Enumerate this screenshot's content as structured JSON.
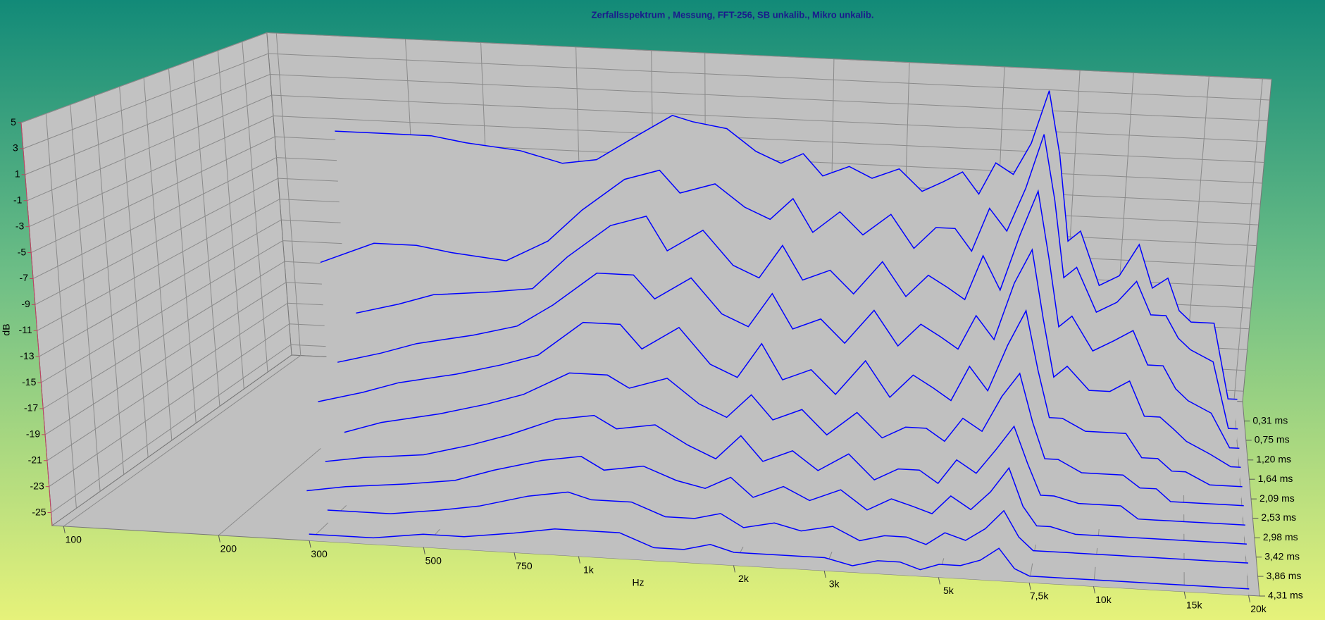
{
  "chart_data": {
    "type": "waterfall",
    "title": "Zerfallsspektrum , Messung, FFT-256, SB unkalib., Mikro unkalib.",
    "xlabel": "Hz",
    "ylabel": "dB",
    "color": "#0000ff",
    "xlog": true,
    "grid": true,
    "xlim": [
      95,
      21000
    ],
    "ylim": [
      -26,
      5
    ],
    "zlim": [
      0.31,
      4.31
    ],
    "xticks": [
      100,
      200,
      300,
      500,
      750,
      {
        "value": 1000,
        "label": "1k"
      },
      {
        "value": 2000,
        "label": "2k"
      },
      {
        "value": 3000,
        "label": "3k"
      },
      {
        "value": 5000,
        "label": "5k"
      },
      {
        "value": 7500,
        "label": "7,5k"
      },
      {
        "value": 10000,
        "label": "10k"
      },
      {
        "value": 15000,
        "label": "15k"
      },
      {
        "value": 20000,
        "label": "20k"
      }
    ],
    "yticks": [
      5,
      3,
      1,
      -1,
      -3,
      -5,
      -7,
      -9,
      -11,
      -13,
      -15,
      -17,
      -19,
      -21,
      -23,
      -25
    ],
    "zticks": [
      {
        "value": 0.31,
        "label": "0,31 ms"
      },
      {
        "value": 0.75,
        "label": "0,75 ms"
      },
      {
        "value": 1.2,
        "label": "1,20 ms"
      },
      {
        "value": 1.64,
        "label": "1,64 ms"
      },
      {
        "value": 2.09,
        "label": "2,09 ms"
      },
      {
        "value": 2.53,
        "label": "2,53 ms"
      },
      {
        "value": 2.98,
        "label": "2,98 ms"
      },
      {
        "value": 3.42,
        "label": "3,42 ms"
      },
      {
        "value": 3.86,
        "label": "3,86 ms"
      },
      {
        "value": 4.31,
        "label": "4,31 ms"
      }
    ],
    "frequencies": [
      150,
      200,
      250,
      300,
      400,
      500,
      600,
      750,
      900,
      1000,
      1200,
      1400,
      1600,
      1800,
      2000,
      2300,
      2600,
      3000,
      3400,
      3800,
      4200,
      4600,
      5000,
      5500,
      6000,
      6500,
      7000,
      7500,
      8000,
      9000,
      10000,
      11000,
      12000,
      13000,
      14000,
      15000,
      17000,
      19000,
      20000
    ],
    "series": [
      {
        "time": 0.31,
        "values": [
          -3,
          -3,
          -3,
          -3.5,
          -4,
          -5,
          -4.5,
          -2,
          0,
          -0.5,
          -1,
          -3,
          -4,
          -3,
          -5,
          -4,
          -5,
          -4,
          -6,
          -5,
          -4,
          -6,
          -3,
          -4,
          -1,
          4,
          -2,
          -10,
          -9,
          -14,
          -13,
          -10,
          -14,
          -13,
          -16,
          -17,
          -17,
          -24,
          -24
        ]
      },
      {
        "time": 0.75,
        "values": [
          -14,
          -12,
          -12,
          -12.5,
          -13,
          -11,
          -8,
          -5,
          -4,
          -6,
          -5,
          -7,
          -8,
          -6,
          -9,
          -7,
          -9,
          -7,
          -10,
          -8,
          -8,
          -10,
          -6,
          -8,
          -4,
          1,
          -5,
          -12,
          -11,
          -15,
          -14,
          -12,
          -15,
          -15,
          -17,
          -18,
          -19,
          -25,
          -25
        ]
      },
      {
        "time": 1.2,
        "values": [
          null,
          -17,
          -16,
          -15,
          -14.5,
          -14,
          -11,
          -8,
          -7,
          -10,
          -8,
          -11,
          -12,
          -9,
          -12,
          -11,
          -13,
          -10,
          -13,
          -11,
          -12,
          -13,
          -9,
          -12,
          -7,
          -3,
          -9,
          -15,
          -14,
          -17,
          -16,
          -15,
          -18,
          -18,
          -20,
          -21,
          -22,
          -25,
          -25
        ]
      },
      {
        "time": 1.64,
        "values": [
          null,
          -20,
          -19,
          -18,
          -17,
          -16,
          -14,
          -11,
          -11,
          -13,
          -11,
          -14,
          -15,
          -12,
          -15,
          -14,
          -16,
          -13,
          -16,
          -14,
          -15,
          -16,
          -13,
          -15,
          -10,
          -7,
          -13,
          -18,
          -17,
          -19,
          -19,
          -18,
          -21,
          -21,
          -22,
          -23,
          -24,
          -25,
          -25
        ]
      },
      {
        "time": 2.09,
        "values": [
          null,
          -22,
          -21,
          -20,
          -19,
          -18,
          -17,
          -14,
          -14,
          -16,
          -14,
          -17,
          -18,
          -15,
          -18,
          -17,
          -19,
          -16,
          -19,
          -17,
          -18,
          -19,
          -16,
          -18,
          -14,
          -11,
          -16,
          -20,
          -20,
          -21,
          -21,
          -21,
          -23,
          -23,
          -24,
          -24,
          -25,
          -25,
          -25
        ]
      },
      {
        "time": 2.53,
        "values": [
          null,
          null,
          -23,
          -22,
          -21,
          -20,
          -19,
          -17,
          -17,
          -18,
          -17,
          -19,
          -20,
          -18,
          -20,
          -19,
          -21,
          -19,
          -21,
          -20,
          -20,
          -21,
          -19,
          -20,
          -17,
          -15,
          -19,
          -22,
          -22,
          -23,
          -23,
          -23,
          -24,
          -24,
          -25,
          -25,
          -25,
          -25,
          -25
        ]
      },
      {
        "time": 2.98,
        "values": [
          null,
          null,
          -24,
          -23.5,
          -23,
          -22,
          -21,
          -19.5,
          -19,
          -20,
          -19.5,
          -21,
          -22,
          -20,
          -22,
          -21,
          -22.5,
          -21,
          -23,
          -22,
          -22,
          -23,
          -21,
          -22,
          -20,
          -18,
          -21,
          -23.5,
          -23.5,
          -24,
          -24,
          -24,
          -25,
          -25,
          -25,
          -25,
          -25,
          -25,
          -25
        ]
      },
      {
        "time": 3.42,
        "values": [
          null,
          null,
          -25,
          -24.5,
          -24,
          -23.5,
          -22.5,
          -21.5,
          -21,
          -22,
          -21.5,
          -22.5,
          -23,
          -22,
          -23.5,
          -22.5,
          -23.5,
          -22.5,
          -24,
          -23,
          -23.5,
          -24,
          -22.5,
          -23.5,
          -22,
          -20,
          -23,
          -24.5,
          -24.5,
          -25,
          -25,
          -25,
          -25,
          -25,
          -25,
          -25,
          -25,
          -25,
          -25
        ]
      },
      {
        "time": 3.86,
        "values": [
          null,
          null,
          null,
          -25,
          -25,
          -24.5,
          -24,
          -23,
          -22.5,
          -23,
          -23,
          -24,
          -24,
          -23.5,
          -24.5,
          -24,
          -24.5,
          -24,
          -25,
          -24.5,
          -24.5,
          -25,
          -24,
          -24.5,
          -23.5,
          -22,
          -24,
          -25,
          -25,
          -25,
          -25,
          -25,
          -25,
          -25,
          -25,
          -25,
          -25,
          -25,
          -25
        ]
      },
      {
        "time": 4.31,
        "values": [
          null,
          null,
          null,
          -25.5,
          -25.5,
          -25,
          -25,
          -24.5,
          -24,
          -24,
          -24,
          -25,
          -25,
          -24.5,
          -25,
          -25,
          -25,
          -25,
          -25.5,
          -25,
          -25,
          -25.5,
          -25,
          -25,
          -24.5,
          -23.5,
          -25,
          -25.5,
          -25.5,
          -25.5,
          -25.5,
          -25.5,
          -25.5,
          -25.5,
          -25.5,
          -25.5,
          -25.5,
          -25.5,
          -25.5
        ]
      }
    ]
  }
}
